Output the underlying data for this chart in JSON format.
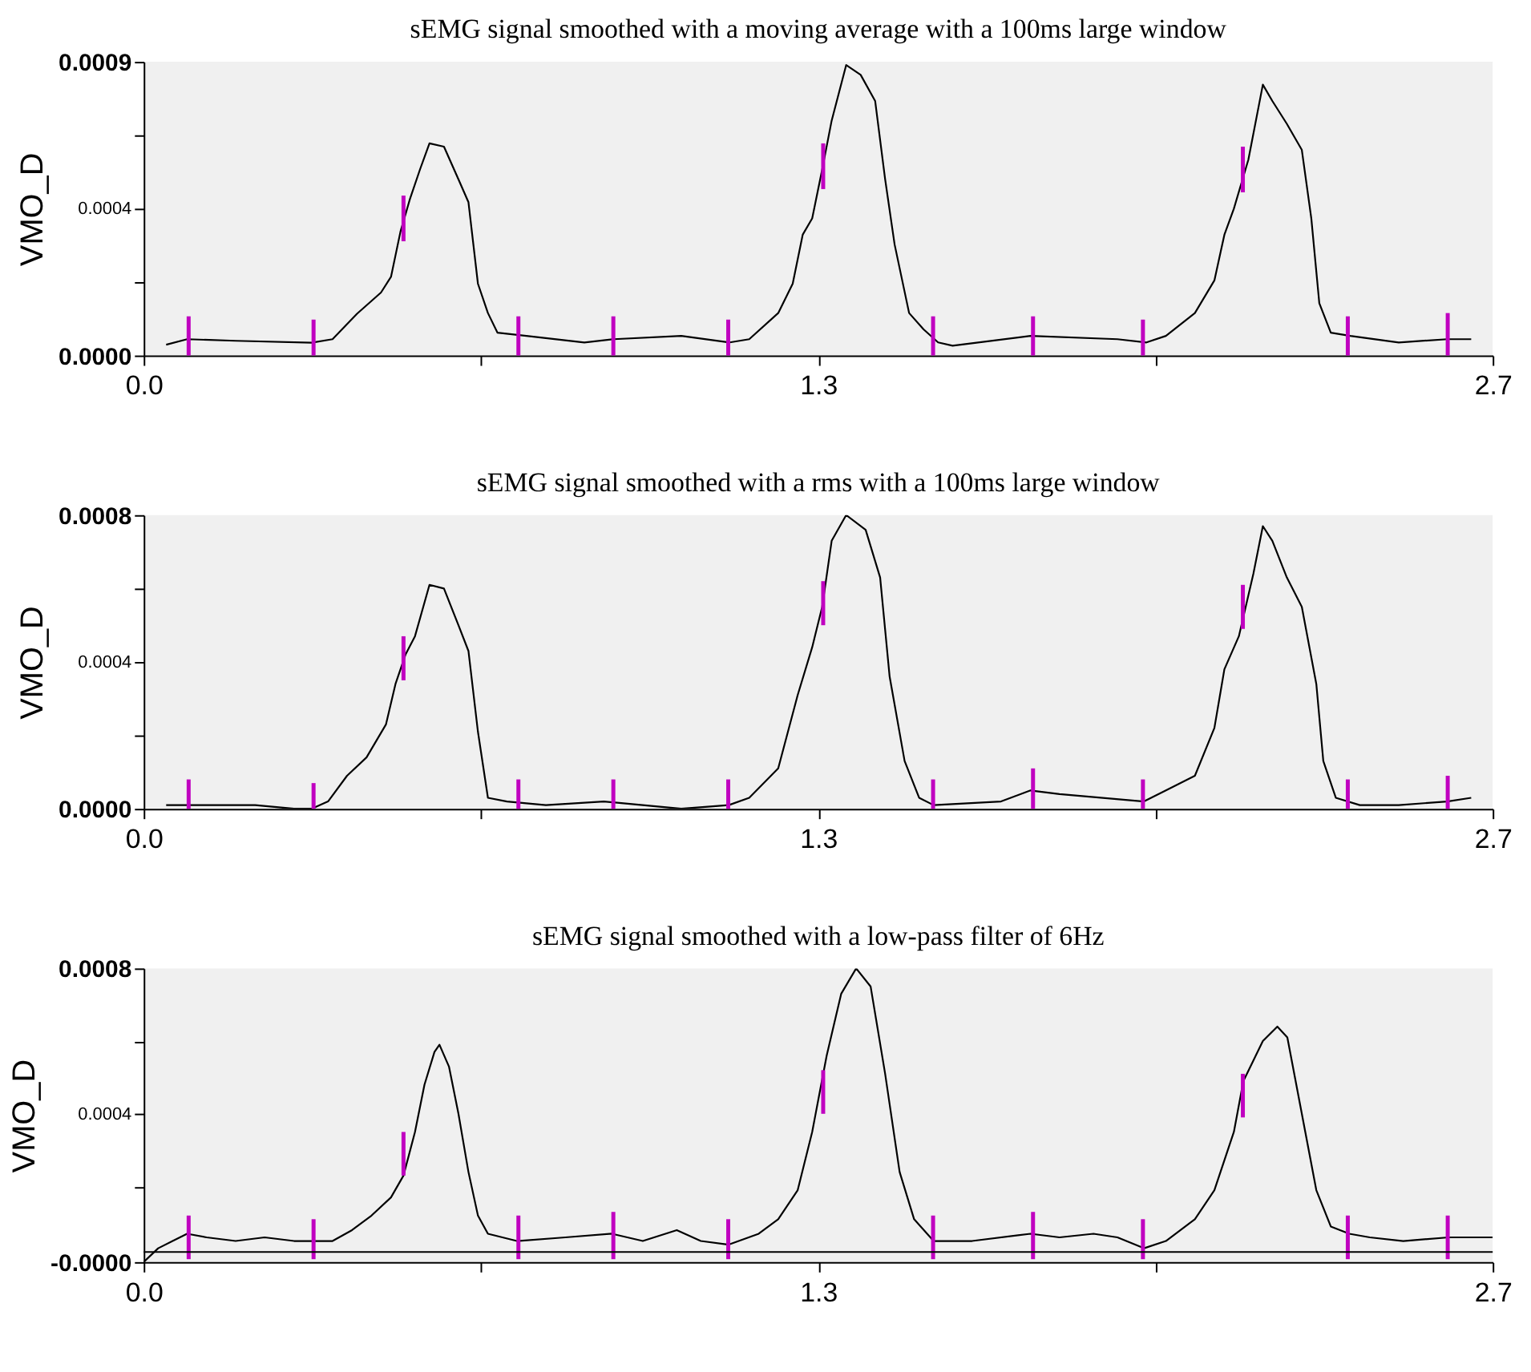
{
  "chart_data": [
    {
      "type": "line",
      "title": "sEMG signal smoothed with a moving average with a 100ms large window",
      "ylabel": "VMO_D",
      "xlim": [
        0,
        2.7
      ],
      "xticks": [
        {
          "value": 0,
          "label": "0.0"
        },
        {
          "value": 0.675,
          "label": null
        },
        {
          "value": 1.35,
          "label": "1.3"
        },
        {
          "value": 2.025,
          "label": null
        },
        {
          "value": 2.7,
          "label": "2.7"
        }
      ],
      "ylim": [
        0,
        0.0009
      ],
      "yticks": [
        {
          "value": 0,
          "label": "0.0000"
        },
        {
          "value": 0.000225,
          "label": null
        },
        {
          "value": 0.00045,
          "label": "0.0004"
        },
        {
          "value": 0.000675,
          "label": null
        },
        0.0009
      ],
      "series": [
        {
          "color": "#000000",
          "x": [
            0.045,
            0.087,
            0.184,
            0.336,
            0.378,
            0.427,
            0.475,
            0.495,
            0.514,
            0.533,
            0.553,
            0.572,
            0.601,
            0.63,
            0.65,
            0.669,
            0.689,
            0.708,
            0.766,
            0.882,
            0.941,
            1.076,
            1.173,
            1.212,
            1.27,
            1.299,
            1.319,
            1.338,
            1.358,
            1.377,
            1.406,
            1.435,
            1.464,
            1.484,
            1.503,
            1.532,
            1.561,
            1.59,
            1.619,
            1.775,
            1.949,
            2.007,
            2.046,
            2.104,
            2.143,
            2.163,
            2.182,
            2.211,
            2.24,
            2.259,
            2.288,
            2.318,
            2.337,
            2.353,
            2.376,
            2.415,
            2.512,
            2.609,
            2.657
          ],
          "values": [
            3.3e-05,
            5e-05,
            4.5e-05,
            3.9e-05,
            5e-05,
            0.000128,
            0.000193,
            0.000241,
            0.00038,
            0.00048,
            0.00057,
            0.00065,
            0.00064,
            0.00054,
            0.00047,
            0.00022,
            0.00013,
            7e-05,
            6e-05,
            4e-05,
            5e-05,
            6e-05,
            4e-05,
            5e-05,
            0.00013,
            0.00022,
            0.00037,
            0.00042,
            0.00057,
            0.00072,
            0.00089,
            0.00086,
            0.00078,
            0.00054,
            0.00034,
            0.00013,
            8e-05,
            4e-05,
            3e-05,
            6e-05,
            5e-05,
            4e-05,
            6e-05,
            0.00013,
            0.00023,
            0.00037,
            0.00045,
            0.0006,
            0.00083,
            0.00078,
            0.00071,
            0.00063,
            0.00042,
            0.00016,
            7e-05,
            6e-05,
            4e-05,
            5e-05,
            5e-05
          ]
        },
        {
          "type": "bar",
          "color": "#c000c0",
          "x": [
            0.09,
            0.34,
            0.52,
            0.75,
            0.94,
            1.17,
            1.36,
            1.58,
            1.78,
            2.0,
            2.2,
            2.41,
            2.61
          ],
          "base": [
            0,
            0,
            0.00035,
            0,
            0,
            0,
            0.00051,
            0,
            0,
            0,
            0.0005,
            0,
            0
          ],
          "values": [
            0.00012,
            0.00011,
            0.00014,
            0.00012,
            0.00012,
            0.00011,
            0.00014,
            0.00012,
            0.00012,
            0.00011,
            0.00014,
            0.00012,
            0.00013
          ]
        }
      ]
    },
    {
      "type": "line",
      "title": "sEMG signal smoothed with a rms with a 100ms large window",
      "ylabel": "VMO_D",
      "xlim": [
        0,
        2.7
      ],
      "xticks": [
        {
          "value": 0,
          "label": "0.0"
        },
        {
          "value": 0.675,
          "label": null
        },
        {
          "value": 1.35,
          "label": "1.3"
        },
        {
          "value": 2.025,
          "label": null
        },
        {
          "value": 2.7,
          "label": "2.7"
        }
      ],
      "ylim": [
        0,
        0.0008
      ],
      "yticks": [
        {
          "value": 0,
          "label": "0.0000"
        },
        {
          "value": 0.0002,
          "label": null
        },
        0.0004,
        {
          "value": 0.0006,
          "label": null
        },
        0.0008
      ],
      "series": [
        {
          "color": "#000000",
          "x": [
            0.045,
            0.223,
            0.301,
            0.336,
            0.369,
            0.407,
            0.446,
            0.485,
            0.504,
            0.524,
            0.543,
            0.572,
            0.601,
            0.63,
            0.65,
            0.669,
            0.689,
            0.727,
            0.805,
            0.921,
            1.076,
            1.171,
            1.212,
            1.27,
            1.309,
            1.338,
            1.358,
            1.377,
            1.406,
            1.445,
            1.474,
            1.493,
            1.523,
            1.552,
            1.581,
            1.716,
            1.775,
            1.833,
            2.002,
            2.046,
            2.104,
            2.143,
            2.163,
            2.192,
            2.221,
            2.24,
            2.259,
            2.288,
            2.318,
            2.347,
            2.361,
            2.386,
            2.434,
            2.512,
            2.609,
            2.657
          ],
          "values": [
            1e-05,
            1e-05,
            0,
            0,
            2e-05,
            9e-05,
            0.00014,
            0.00023,
            0.00034,
            0.00042,
            0.00047,
            0.00061,
            0.0006,
            0.0005,
            0.00043,
            0.00021,
            3e-05,
            2e-05,
            1e-05,
            2e-05,
            0,
            1e-05,
            3e-05,
            0.00011,
            0.00031,
            0.00044,
            0.00055,
            0.00073,
            0.0008,
            0.00076,
            0.00063,
            0.00036,
            0.00013,
            3e-05,
            1e-05,
            2e-05,
            5e-05,
            4e-05,
            2e-05,
            5e-05,
            9e-05,
            0.00022,
            0.00038,
            0.00047,
            0.00064,
            0.00077,
            0.00073,
            0.00063,
            0.00055,
            0.00034,
            0.00013,
            3e-05,
            1e-05,
            1e-05,
            2e-05,
            3e-05
          ]
        },
        {
          "type": "bar",
          "color": "#c000c0",
          "x": [
            0.09,
            0.34,
            0.52,
            0.75,
            0.94,
            1.17,
            1.36,
            1.58,
            1.78,
            2.0,
            2.2,
            2.41,
            2.61
          ],
          "base": [
            0,
            0,
            0.00035,
            0,
            0,
            0,
            0.0005,
            0,
            0,
            0,
            0.00049,
            0,
            0
          ],
          "values": [
            8e-05,
            7e-05,
            0.00012,
            8e-05,
            8e-05,
            8e-05,
            0.00012,
            8e-05,
            0.00011,
            8e-05,
            0.00012,
            8e-05,
            9e-05
          ]
        }
      ]
    },
    {
      "type": "line",
      "title": "sEMG signal smoothed with a low-pass filter of 6Hz",
      "ylabel": "VMO_D",
      "xlim": [
        0,
        2.7
      ],
      "xticks": [
        {
          "value": 0,
          "label": "0.0"
        },
        {
          "value": 0.675,
          "label": null
        },
        {
          "value": 1.35,
          "label": "1.3"
        },
        {
          "value": 2.025,
          "label": null
        },
        {
          "value": 2.7,
          "label": "2.7"
        }
      ],
      "ylim": [
        -8e-06,
        0.0008
      ],
      "yticks": [
        {
          "value": -8e-06,
          "label": "-0.0000"
        },
        {
          "value": 0.0002,
          "label": null
        },
        0.0004,
        {
          "value": 0.0006,
          "label": null
        },
        0.0008
      ],
      "ref_lines": [
        {
          "axis": "y",
          "value": 2e-05,
          "color": "#000000"
        }
      ],
      "series": [
        {
          "color": "#000000",
          "x": [
            0,
            0.029,
            0.058,
            0.087,
            0.126,
            0.184,
            0.242,
            0.301,
            0.336,
            0.378,
            0.417,
            0.456,
            0.495,
            0.52,
            0.543,
            0.562,
            0.582,
            0.592,
            0.611,
            0.63,
            0.65,
            0.669,
            0.689,
            0.747,
            0.844,
            0.937,
            0.999,
            1.067,
            1.115,
            1.171,
            1.231,
            1.27,
            1.309,
            1.338,
            1.367,
            1.396,
            1.426,
            1.455,
            1.484,
            1.513,
            1.542,
            1.581,
            1.658,
            1.775,
            1.833,
            1.901,
            1.949,
            2.002,
            2.046,
            2.104,
            2.143,
            2.182,
            2.201,
            2.24,
            2.269,
            2.289,
            2.318,
            2.347,
            2.376,
            2.413,
            2.454,
            2.521,
            2.612,
            2.7
          ],
          "values": [
            -8e-06,
            3e-05,
            5e-05,
            7e-05,
            6e-05,
            5e-05,
            6e-05,
            5e-05,
            5e-05,
            5e-05,
            8e-05,
            0.00012,
            0.00017,
            0.00023,
            0.00035,
            0.00048,
            0.00057,
            0.00059,
            0.00053,
            0.0004,
            0.00024,
            0.00012,
            7e-05,
            5e-05,
            6e-05,
            7e-05,
            5e-05,
            8e-05,
            5e-05,
            4e-05,
            7e-05,
            0.00011,
            0.00019,
            0.00035,
            0.00056,
            0.00073,
            0.0008,
            0.00075,
            0.00051,
            0.00024,
            0.00011,
            5e-05,
            5e-05,
            7e-05,
            6e-05,
            7e-05,
            6e-05,
            3e-05,
            5e-05,
            0.00011,
            0.00019,
            0.00035,
            0.00049,
            0.0006,
            0.00064,
            0.00061,
            0.0004,
            0.00019,
            9e-05,
            7e-05,
            6e-05,
            5e-05,
            6e-05,
            6e-05
          ]
        },
        {
          "type": "bar",
          "color": "#c000c0",
          "x": [
            0.09,
            0.34,
            0.52,
            0.75,
            0.94,
            1.17,
            1.36,
            1.58,
            1.78,
            2.0,
            2.2,
            2.41,
            2.61
          ],
          "base": [
            0,
            0,
            0.00023,
            0,
            0,
            0,
            0.0004,
            0,
            0,
            0,
            0.00039,
            0,
            0
          ],
          "values": [
            0.00012,
            0.00011,
            0.00012,
            0.00012,
            0.00013,
            0.00011,
            0.00012,
            0.00012,
            0.00013,
            0.00011,
            0.00012,
            0.00012,
            0.00012
          ]
        }
      ]
    }
  ]
}
